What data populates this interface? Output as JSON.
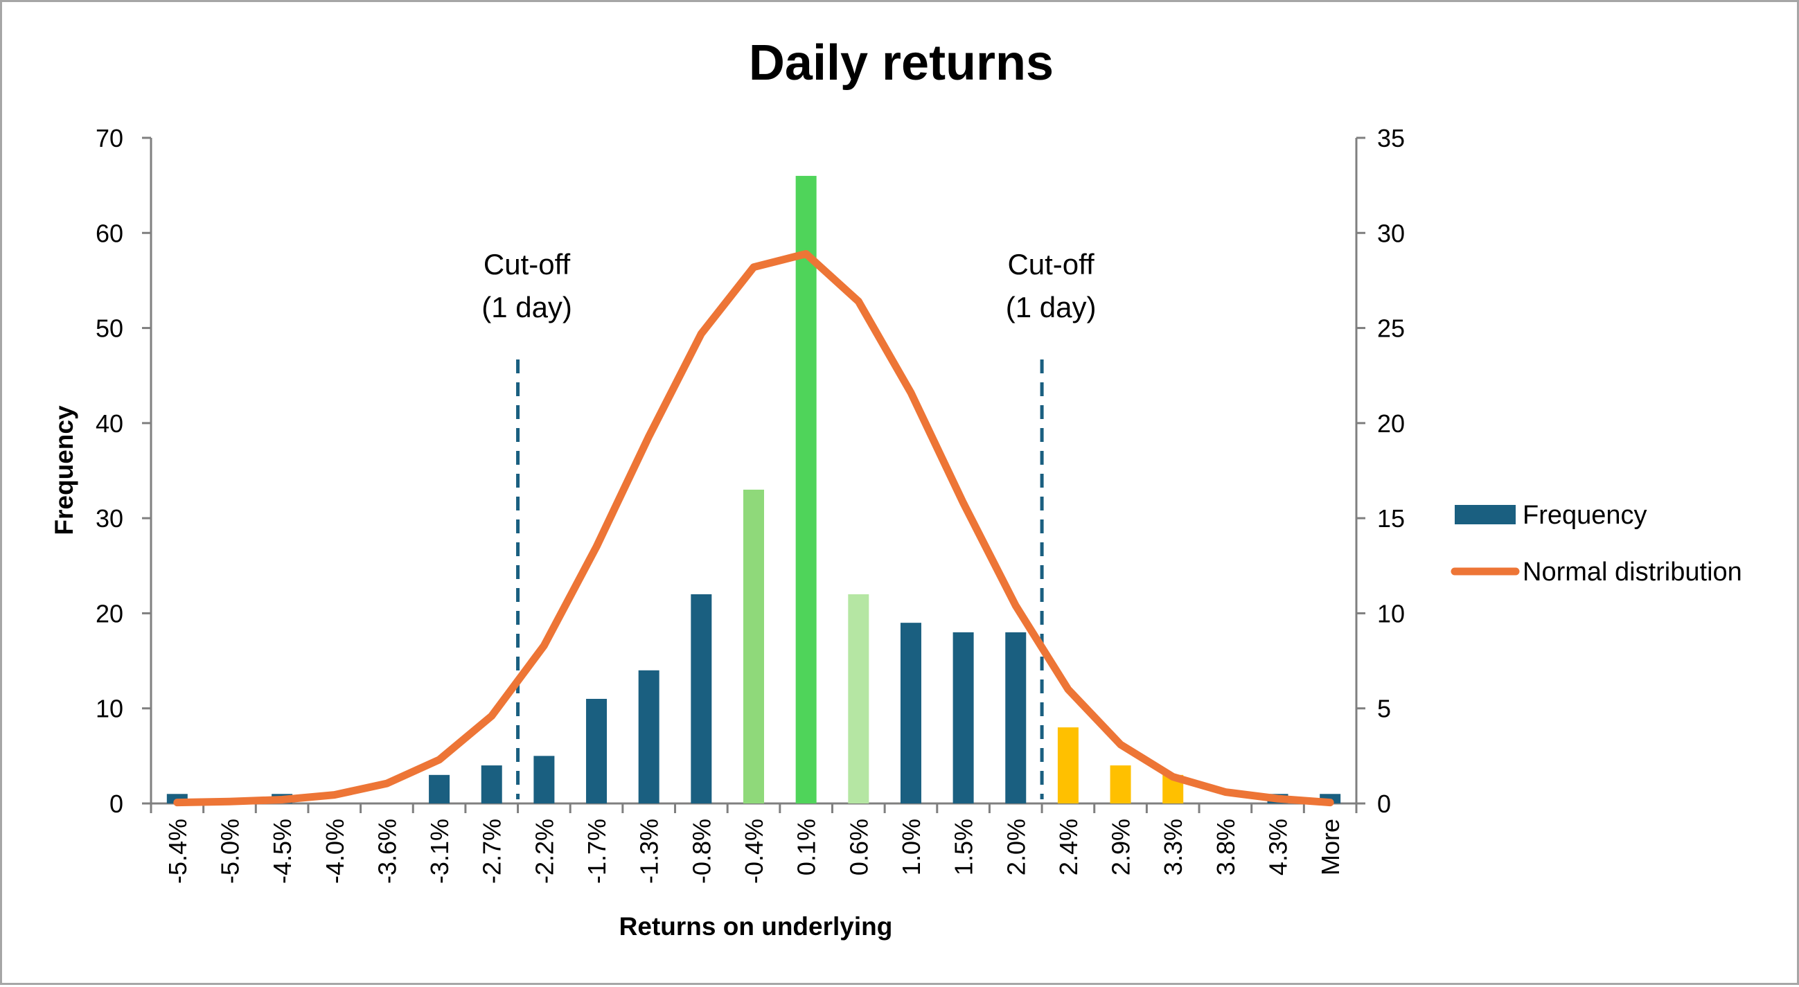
{
  "chart_data": {
    "type": "bar",
    "title": "Daily returns",
    "xlabel": "Returns on underlying",
    "ylabel": "Frequency",
    "ylim": [
      0,
      70
    ],
    "y_ticks": [
      0,
      10,
      20,
      30,
      40,
      50,
      60,
      70
    ],
    "y2lim": [
      0,
      35
    ],
    "y2_ticks": [
      0,
      5,
      10,
      15,
      20,
      25,
      30,
      35
    ],
    "categories": [
      "-5.4%",
      "-5.0%",
      "-4.5%",
      "-4.0%",
      "-3.6%",
      "-3.1%",
      "-2.7%",
      "-2.2%",
      "-1.7%",
      "-1.3%",
      "-0.8%",
      "-0.4%",
      "0.1%",
      "0.6%",
      "1.0%",
      "1.5%",
      "2.0%",
      "2.4%",
      "2.9%",
      "3.3%",
      "3.8%",
      "4.3%",
      "More"
    ],
    "series": [
      {
        "name": "Frequency",
        "axis": "primary",
        "type": "bar",
        "color": "#1a5f80",
        "values": [
          1,
          0,
          1,
          0,
          0,
          3,
          4,
          5,
          11,
          14,
          22,
          33,
          66,
          22,
          19,
          18,
          18,
          8,
          4,
          3,
          0,
          1,
          1
        ],
        "bar_colors": [
          "#1a5f80",
          "#1a5f80",
          "#1a5f80",
          "#1a5f80",
          "#1a5f80",
          "#1a5f80",
          "#1a5f80",
          "#1a5f80",
          "#1a5f80",
          "#1a5f80",
          "#1a5f80",
          "#8fd97a",
          "#4fd45a",
          "#b5e6a3",
          "#1a5f80",
          "#1a5f80",
          "#1a5f80",
          "#ffc000",
          "#ffc000",
          "#ffc000",
          "#1a5f80",
          "#1a5f80",
          "#1a5f80"
        ]
      },
      {
        "name": "Normal distribution",
        "axis": "secondary",
        "type": "line",
        "color": "#ed7536",
        "values": [
          0.05,
          0.1,
          0.2,
          0.45,
          1.05,
          2.3,
          4.6,
          8.3,
          13.5,
          19.3,
          24.7,
          28.2,
          28.9,
          26.4,
          21.6,
          15.8,
          10.4,
          6.0,
          3.1,
          1.4,
          0.6,
          0.25,
          0.05
        ]
      }
    ],
    "annotations": [
      {
        "lines": [
          "Cut-off",
          "(1 day)"
        ],
        "position_between": [
          "-2.7%",
          "-2.2%"
        ],
        "style": "dashed-vertical"
      },
      {
        "lines": [
          "Cut-off",
          "(1 day)"
        ],
        "position_between": [
          "2.0%",
          "2.4%"
        ],
        "style": "dashed-vertical"
      }
    ],
    "cutoff_line_color": "#1a5f80",
    "legend_position": "right",
    "grid": false
  }
}
